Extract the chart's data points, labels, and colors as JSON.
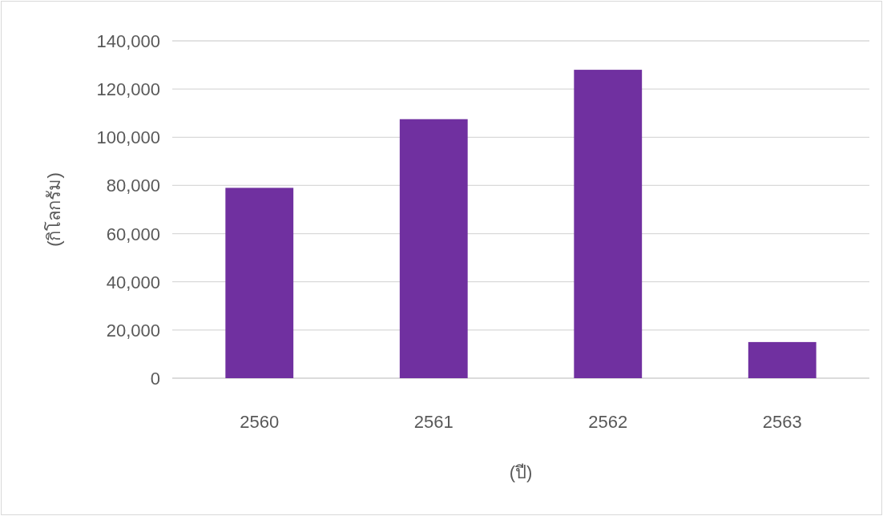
{
  "chart_data": {
    "type": "bar",
    "xlabel": "(ปี)",
    "ylabel": "(กิโลกรัม)",
    "categories": [
      "2560",
      "2561",
      "2562",
      "2563"
    ],
    "values": [
      79000,
      107500,
      128000,
      15000
    ],
    "color": "#7030a0",
    "ylim": [
      0,
      140000
    ],
    "yticks": [
      0,
      {
        "value": 20000,
        "label": "20,000"
      },
      {
        "value": 40000,
        "label": "40,000"
      },
      {
        "value": 60000,
        "label": "60,000"
      },
      {
        "value": 80000,
        "label": "80,000"
      },
      {
        "value": 100000,
        "label": "100,000"
      },
      {
        "value": 120000,
        "label": "120,000"
      },
      {
        "value": 140000,
        "label": "140,000"
      }
    ],
    "grid": "y"
  }
}
